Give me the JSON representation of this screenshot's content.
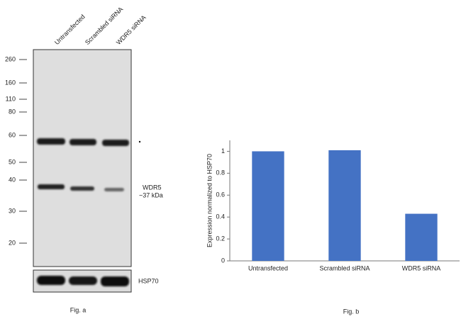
{
  "blot": {
    "lanes": [
      "Untransfected",
      "Scrambled siRNA",
      "WDR5 siRNA"
    ],
    "markers": [
      260,
      160,
      110,
      80,
      60,
      50,
      40,
      30,
      20
    ],
    "band_label": "WDR5",
    "band_size": "~37 kDa",
    "loading_control": "HSP70",
    "caption": "Fig. a"
  },
  "chart_data": {
    "type": "bar",
    "y_label": "Expression  normalized to HSP70",
    "categories": [
      "Untransfected",
      "Scrambled siRNA",
      "WDR5 siRNA"
    ],
    "values": [
      1,
      1.01,
      0.43
    ],
    "color": "#4472c4",
    "ylim": [
      0,
      1.1
    ],
    "yticks": [
      0,
      0.2,
      0.4,
      0.6,
      0.8,
      1
    ],
    "caption": "Fig. b"
  }
}
